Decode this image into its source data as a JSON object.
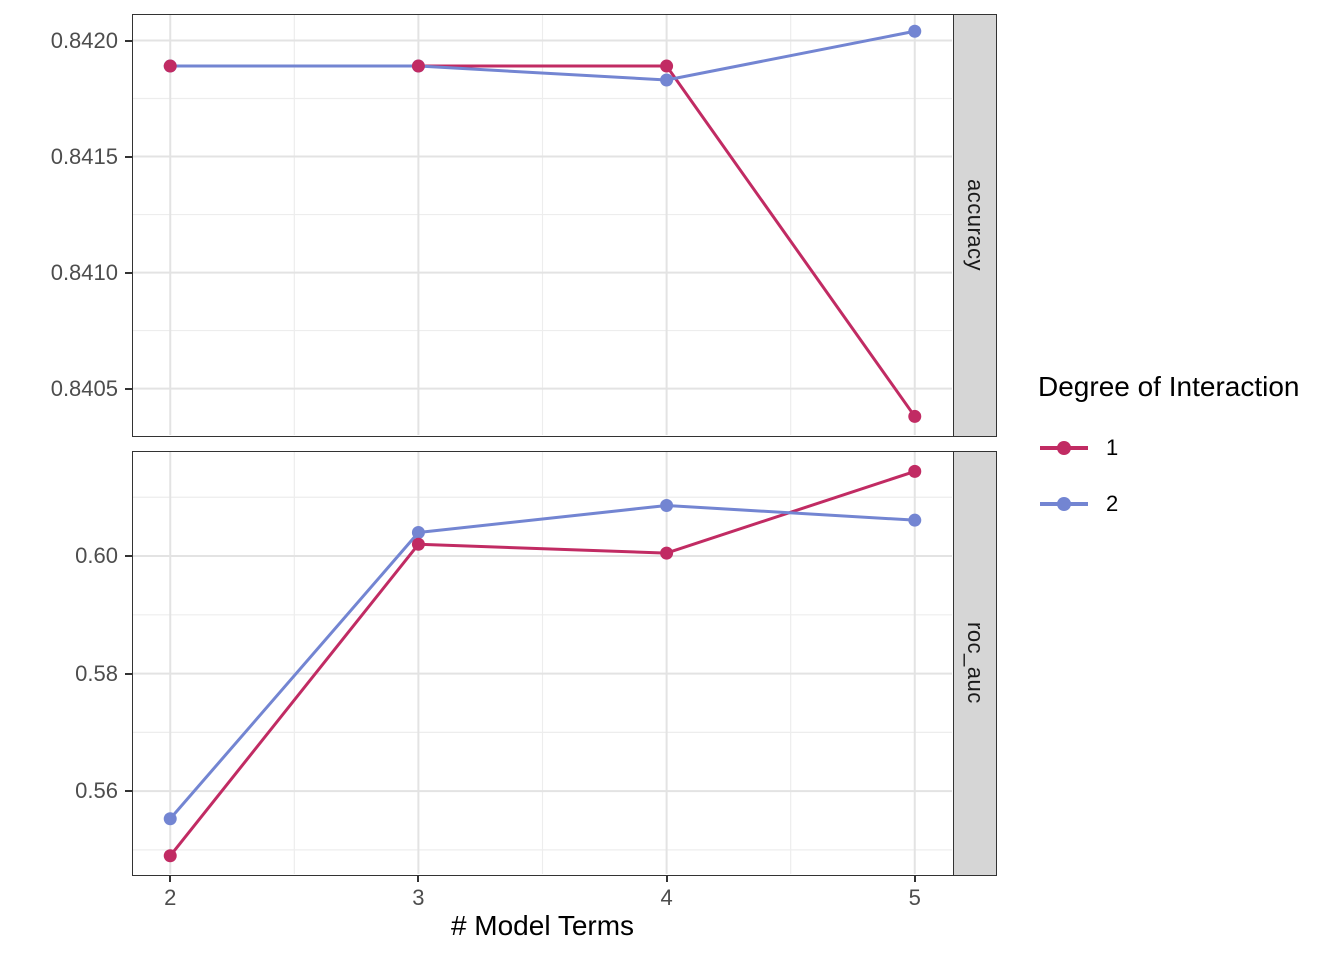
{
  "chart_data": {
    "type": "line",
    "title": "",
    "xlabel": "# Model Terms",
    "ylabel": "",
    "legend_title": "Degree of Interaction",
    "legend_position": "right",
    "grid": true,
    "x": [
      2,
      3,
      4,
      5
    ],
    "x_tick_labels": [
      "2",
      "3",
      "4",
      "5"
    ],
    "xlim": [
      1.85,
      5.15
    ],
    "x_minor": [
      2.5,
      3.5,
      4.5
    ],
    "series": [
      {
        "name": "1",
        "color": "#C12B63"
      },
      {
        "name": "2",
        "color": "#7385D2"
      }
    ],
    "facets": [
      {
        "label": "accuracy",
        "ylim": [
          0.8403,
          0.84211
        ],
        "ytick_values": [
          0.8405,
          0.841,
          0.8415,
          0.842
        ],
        "ytick_labels": [
          "0.8405",
          "0.8410",
          "0.8415",
          "0.8420"
        ],
        "y_minor": [
          0.84075,
          0.84125,
          0.84175
        ],
        "values": [
          [
            0.84189,
            0.84189,
            0.84189,
            0.84038
          ],
          [
            0.84189,
            0.84189,
            0.84183,
            0.84204
          ]
        ]
      },
      {
        "label": "roc_auc",
        "ylim": [
          0.5459,
          0.6177
        ],
        "ytick_values": [
          0.56,
          0.58,
          0.6
        ],
        "ytick_labels": [
          "0.56",
          "0.58",
          "0.60"
        ],
        "y_minor": [
          0.55,
          0.57,
          0.59,
          0.61
        ],
        "values": [
          [
            0.549,
            0.602,
            0.6005,
            0.6144
          ],
          [
            0.5553,
            0.604,
            0.6086,
            0.6061
          ]
        ]
      }
    ],
    "style": {
      "grid_major_color": "#E3E3E3",
      "grid_minor_color": "#EDEDED",
      "panel_border_color": "#333333",
      "strip_background": "#D6D6D6",
      "axis_text_color": "#4D4D4D",
      "point_radius": 6.5,
      "line_width": 3
    }
  }
}
